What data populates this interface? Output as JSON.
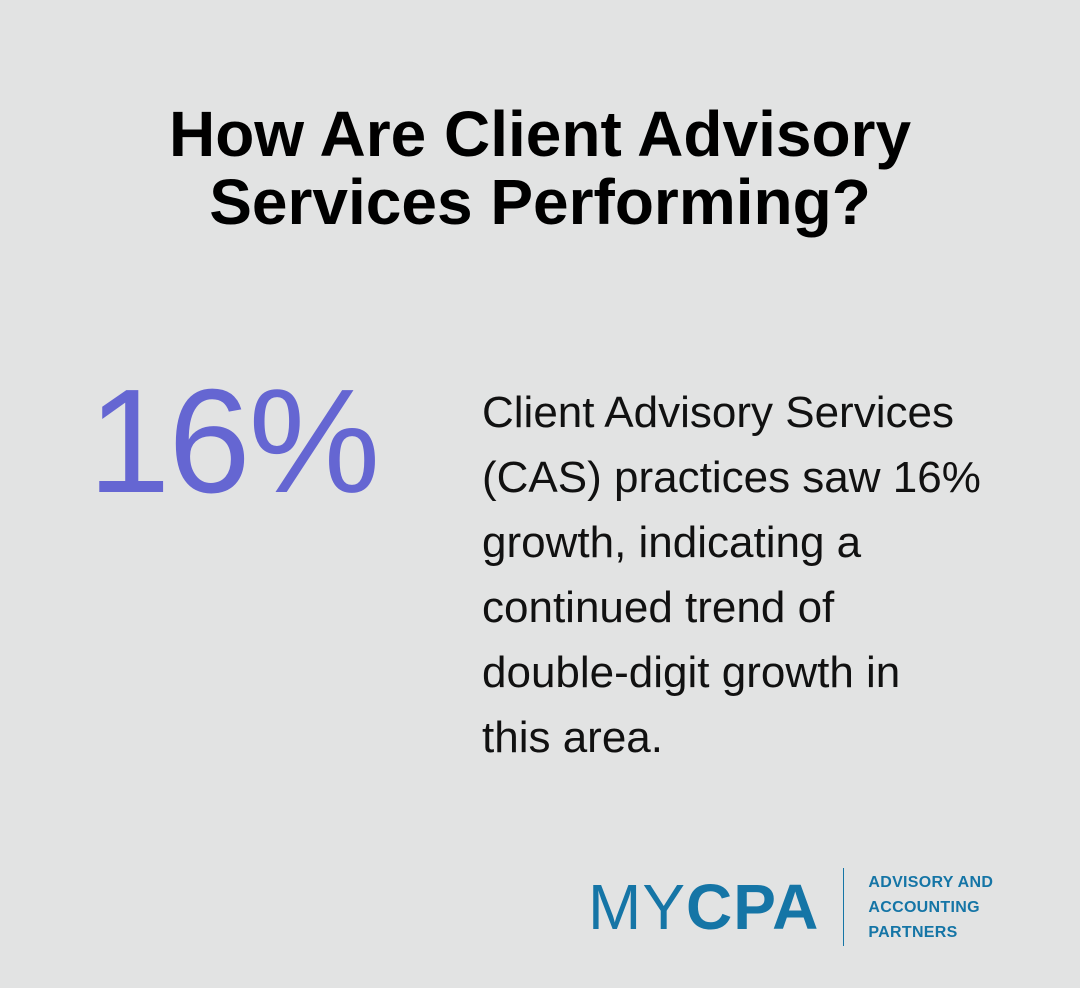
{
  "colors": {
    "background": "#e2e3e3",
    "accent": "#6566d2",
    "brand": "#1575a6"
  },
  "heading": {
    "lines": [
      "How Are Client Advisory",
      "Services Performing?"
    ]
  },
  "stat": {
    "value": "16%"
  },
  "description": {
    "lines": [
      "Client Advisory Services",
      "(CAS) practices saw 16%",
      "growth, indicating a",
      "continued trend of",
      "double-digit growth in",
      "this area."
    ]
  },
  "logo": {
    "brand_light": "MY",
    "brand_bold": "CPA",
    "tagline": [
      "ADVISORY AND",
      "ACCOUNTING",
      "PARTNERS"
    ]
  }
}
